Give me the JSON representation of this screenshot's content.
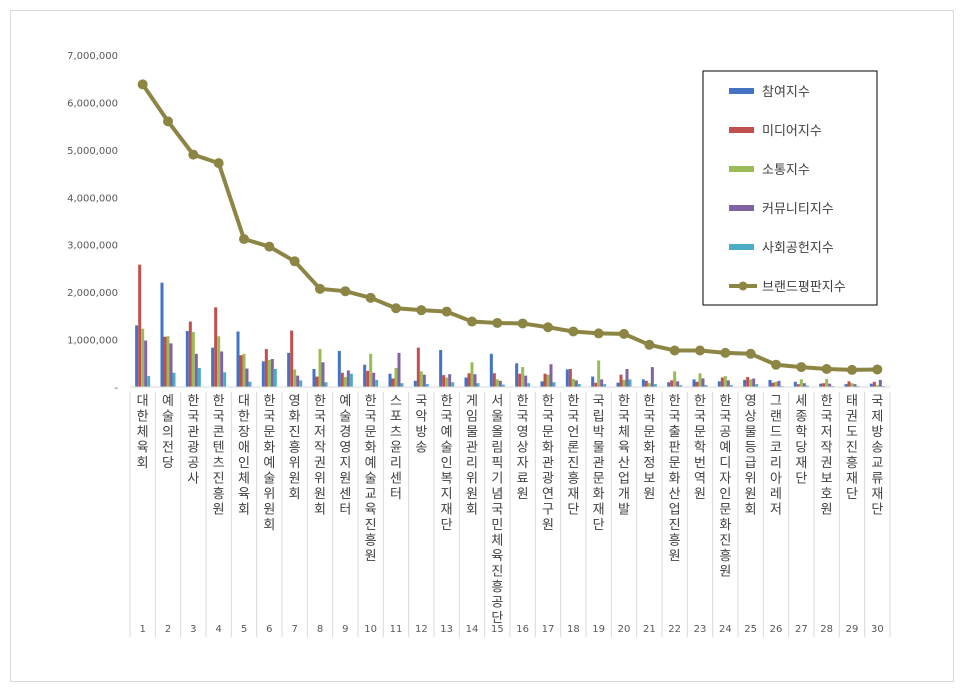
{
  "chart_data": {
    "type": "bar",
    "title": "",
    "xlabel": "",
    "ylabel": "",
    "ylim": [
      0,
      7000000
    ],
    "yticks": [
      0,
      1000000,
      2000000,
      3000000,
      4000000,
      5000000,
      6000000,
      7000000
    ],
    "ytick_labels": [
      "-",
      "1,000,000",
      "2,000,000",
      "3,000,000",
      "4,000,000",
      "5,000,000",
      "6,000,000",
      "7,000,000"
    ],
    "grid": false,
    "legend_position": "top-right",
    "rank_labels": [
      "1",
      "2",
      "3",
      "4",
      "5",
      "6",
      "7",
      "8",
      "9",
      "10",
      "11",
      "12",
      "13",
      "14",
      "15",
      "16",
      "17",
      "18",
      "19",
      "20",
      "21",
      "22",
      "23",
      "24",
      "25",
      "26",
      "27",
      "28",
      "29",
      "30"
    ],
    "categories": [
      "대한체육회",
      "예술의전당",
      "한국관광공사",
      "한국콘텐츠진흥원",
      "대한장애인체육회",
      "한국문화예술위원회",
      "영화진흥위원회",
      "한국저작권위원회",
      "예술경영지원센터",
      "한국문화예술교육진흥원",
      "스포츠윤리센터",
      "국악방송",
      "한국예술인복지재단",
      "게임물관리위원회",
      "서울올림픽기념국민체육진흥공단",
      "한국영상자료원",
      "한국문화관광연구원",
      "한국언론진흥재단",
      "국립박물관문화재단",
      "한국체육산업개발",
      "한국문화정보원",
      "한국출판문화산업진흥원",
      "한국문학번역원",
      "한국공예디자인문화진흥원",
      "영상물등급위원회",
      "그랜드코리아레저",
      "세종학당재단",
      "한국저작권보호원",
      "태권도진흥재단",
      "국제방송교류재단"
    ],
    "series": [
      {
        "name": "참여지수",
        "type": "bar",
        "color": "#4472c4",
        "values": [
          1300000,
          2200000,
          1180000,
          830000,
          1170000,
          540000,
          720000,
          380000,
          760000,
          470000,
          280000,
          130000,
          780000,
          200000,
          700000,
          500000,
          120000,
          370000,
          220000,
          90000,
          160000,
          100000,
          160000,
          120000,
          150000,
          150000,
          110000,
          70000,
          60000,
          70000
        ]
      },
      {
        "name": "미디어지수",
        "type": "bar",
        "color": "#c0504d",
        "values": [
          2580000,
          1060000,
          1380000,
          1680000,
          670000,
          800000,
          1190000,
          220000,
          300000,
          340000,
          180000,
          830000,
          250000,
          290000,
          290000,
          280000,
          280000,
          380000,
          90000,
          260000,
          130000,
          140000,
          110000,
          200000,
          210000,
          90000,
          60000,
          80000,
          120000,
          110000
        ]
      },
      {
        "name": "소통지수",
        "type": "bar",
        "color": "#9bbb59",
        "values": [
          1230000,
          1070000,
          1160000,
          1070000,
          700000,
          570000,
          370000,
          800000,
          210000,
          700000,
          400000,
          330000,
          200000,
          520000,
          160000,
          420000,
          260000,
          170000,
          560000,
          150000,
          80000,
          330000,
          290000,
          230000,
          160000,
          110000,
          160000,
          170000,
          80000,
          40000
        ]
      },
      {
        "name": "커뮤니티지수",
        "type": "bar",
        "color": "#8064a2",
        "values": [
          980000,
          920000,
          700000,
          750000,
          390000,
          590000,
          240000,
          520000,
          350000,
          300000,
          720000,
          260000,
          270000,
          270000,
          130000,
          240000,
          480000,
          140000,
          160000,
          380000,
          420000,
          120000,
          180000,
          140000,
          180000,
          130000,
          80000,
          70000,
          60000,
          150000
        ]
      },
      {
        "name": "사회공헌지수",
        "type": "bar",
        "color": "#4bacc6",
        "values": [
          230000,
          300000,
          400000,
          310000,
          110000,
          380000,
          140000,
          100000,
          280000,
          150000,
          80000,
          60000,
          100000,
          80000,
          50000,
          80000,
          100000,
          60000,
          60000,
          160000,
          60000,
          40000,
          40000,
          40000,
          60000,
          20000,
          30000,
          20000,
          20000,
          20000
        ]
      },
      {
        "name": "브랜드평판지수",
        "type": "line",
        "color": "#8c8544",
        "values": [
          6380000,
          5600000,
          4900000,
          4720000,
          3120000,
          2960000,
          2650000,
          2070000,
          2020000,
          1880000,
          1660000,
          1620000,
          1590000,
          1380000,
          1350000,
          1340000,
          1260000,
          1170000,
          1130000,
          1120000,
          890000,
          770000,
          770000,
          720000,
          700000,
          470000,
          420000,
          380000,
          360000,
          370000
        ]
      }
    ]
  }
}
